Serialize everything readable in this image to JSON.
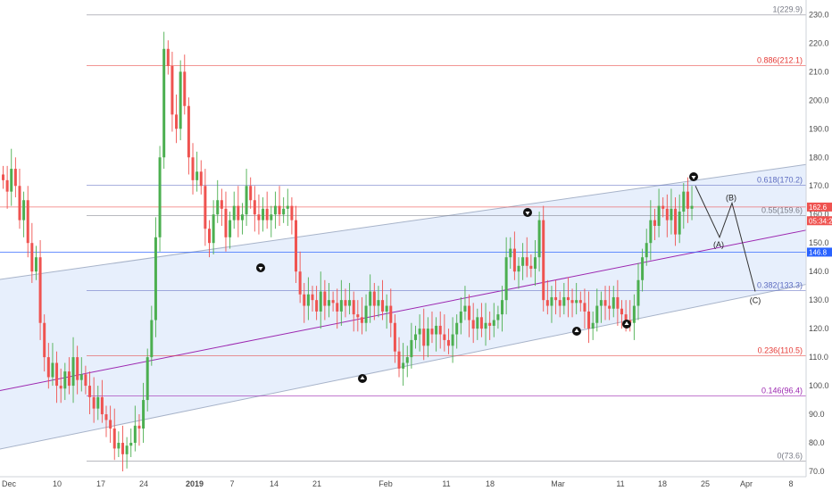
{
  "chart_data": {
    "type": "candlestick",
    "ylim": [
      70,
      232
    ],
    "y_ticks": [
      70,
      80,
      90,
      100,
      110,
      120,
      130,
      140,
      150,
      160,
      170,
      180,
      190,
      200,
      210,
      220,
      230
    ],
    "y_tick_labels": [
      "70.0",
      "80.0",
      "90.0",
      "100.0",
      "110.0",
      "120.0",
      "130.0",
      "140.0",
      "150.0",
      "160.0",
      "170.0",
      "180.0",
      "190.0",
      "200.0",
      "210.0",
      "220.0",
      "230.0"
    ],
    "x_tick_labels": [
      "Dec",
      "10",
      "17",
      "24",
      "2019",
      "7",
      "14",
      "21",
      "Feb",
      "11",
      "18",
      "Mar",
      "11",
      "18",
      "25",
      "Apr",
      "8"
    ],
    "fib_levels": [
      {
        "label": "1(229.9)",
        "value": 229.9,
        "color": "#787b86"
      },
      {
        "label": "0.886(212.1)",
        "value": 212.1,
        "color": "#e53935"
      },
      {
        "label": "0.618(170.2)",
        "value": 170.2,
        "color": "#5c6bc0"
      },
      {
        "label": "0.55(159.6)",
        "value": 159.6,
        "color": "#787b86"
      },
      {
        "label": "0.382(133.3)",
        "value": 133.3,
        "color": "#5c6bc0"
      },
      {
        "label": "0.236(110.5)",
        "value": 110.5,
        "color": "#e53935"
      },
      {
        "label": "0.146(96.4)",
        "value": 96.4,
        "color": "#9c27b0"
      },
      {
        "label": "0(73.6)",
        "value": 73.6,
        "color": "#787b86"
      }
    ],
    "price_lines": [
      {
        "label": "162.6",
        "value": 162.6,
        "color": "#ef5350"
      },
      {
        "label": "05:34:21",
        "value": 157.8,
        "color": "#ef5350"
      },
      {
        "label": "146.8",
        "value": 146.8,
        "color": "#2962ff"
      }
    ],
    "wave_labels": [
      "(B)",
      "(A)",
      "(C)"
    ],
    "projection": [
      {
        "x": "Mar 22",
        "y": 170
      },
      {
        "x": "Mar 27",
        "y": 152
      },
      {
        "x": "Mar 31",
        "y": 164
      },
      {
        "x": "Apr 6",
        "y": 133
      }
    ],
    "series_close": [
      172,
      168,
      176,
      170,
      158,
      165,
      150,
      140,
      145,
      122,
      110,
      103,
      108,
      100,
      99,
      105,
      100,
      110,
      102,
      104,
      100,
      96,
      92,
      96,
      90,
      88,
      85,
      78,
      80,
      76,
      79,
      80,
      86,
      85,
      95,
      110,
      123,
      152,
      180,
      218,
      212,
      195,
      190,
      210,
      198,
      180,
      172,
      175,
      170,
      155,
      150,
      160,
      165,
      162,
      152,
      158,
      163,
      158,
      160,
      170,
      165,
      160,
      158,
      162,
      158,
      160,
      163,
      160,
      162,
      163,
      158,
      140,
      132,
      128,
      132,
      130,
      126,
      133,
      128,
      130,
      129,
      126,
      130,
      128,
      130,
      125,
      124,
      122,
      128,
      133,
      128,
      130,
      126,
      128,
      122,
      112,
      106,
      108,
      110,
      116,
      118,
      120,
      114,
      120,
      118,
      121,
      118,
      116,
      114,
      118,
      122,
      126,
      128,
      123,
      120,
      124,
      120,
      122,
      121,
      123,
      125,
      130,
      145,
      148,
      140,
      142,
      145,
      142,
      141,
      145,
      158,
      130,
      128,
      131,
      130,
      128,
      131,
      130,
      129,
      130,
      129,
      126,
      120,
      122,
      128,
      130,
      128,
      127,
      131,
      127,
      125,
      123,
      122,
      128,
      137,
      145,
      150,
      158,
      156,
      163,
      162,
      158,
      162,
      153,
      161,
      168,
      162,
      163
    ],
    "date_labels_note": "",
    "channel": {
      "upper_start": 137.0,
      "upper_end": 177.5,
      "lower_start": 77.5,
      "lower_end": 135.5,
      "mid_start": 98.0,
      "mid_end": 154.5
    }
  },
  "icons": {
    "arrow_down": "down-arrow-circle-icon",
    "arrow_up": "up-arrow-circle-icon"
  },
  "colors": {
    "up": "#4caf50",
    "down": "#ef5350",
    "channel_fill": "#e3ecfb",
    "channel_line": "#a7b3c9",
    "midline": "#9c27b0",
    "axis_text": "#4a4a4a"
  }
}
